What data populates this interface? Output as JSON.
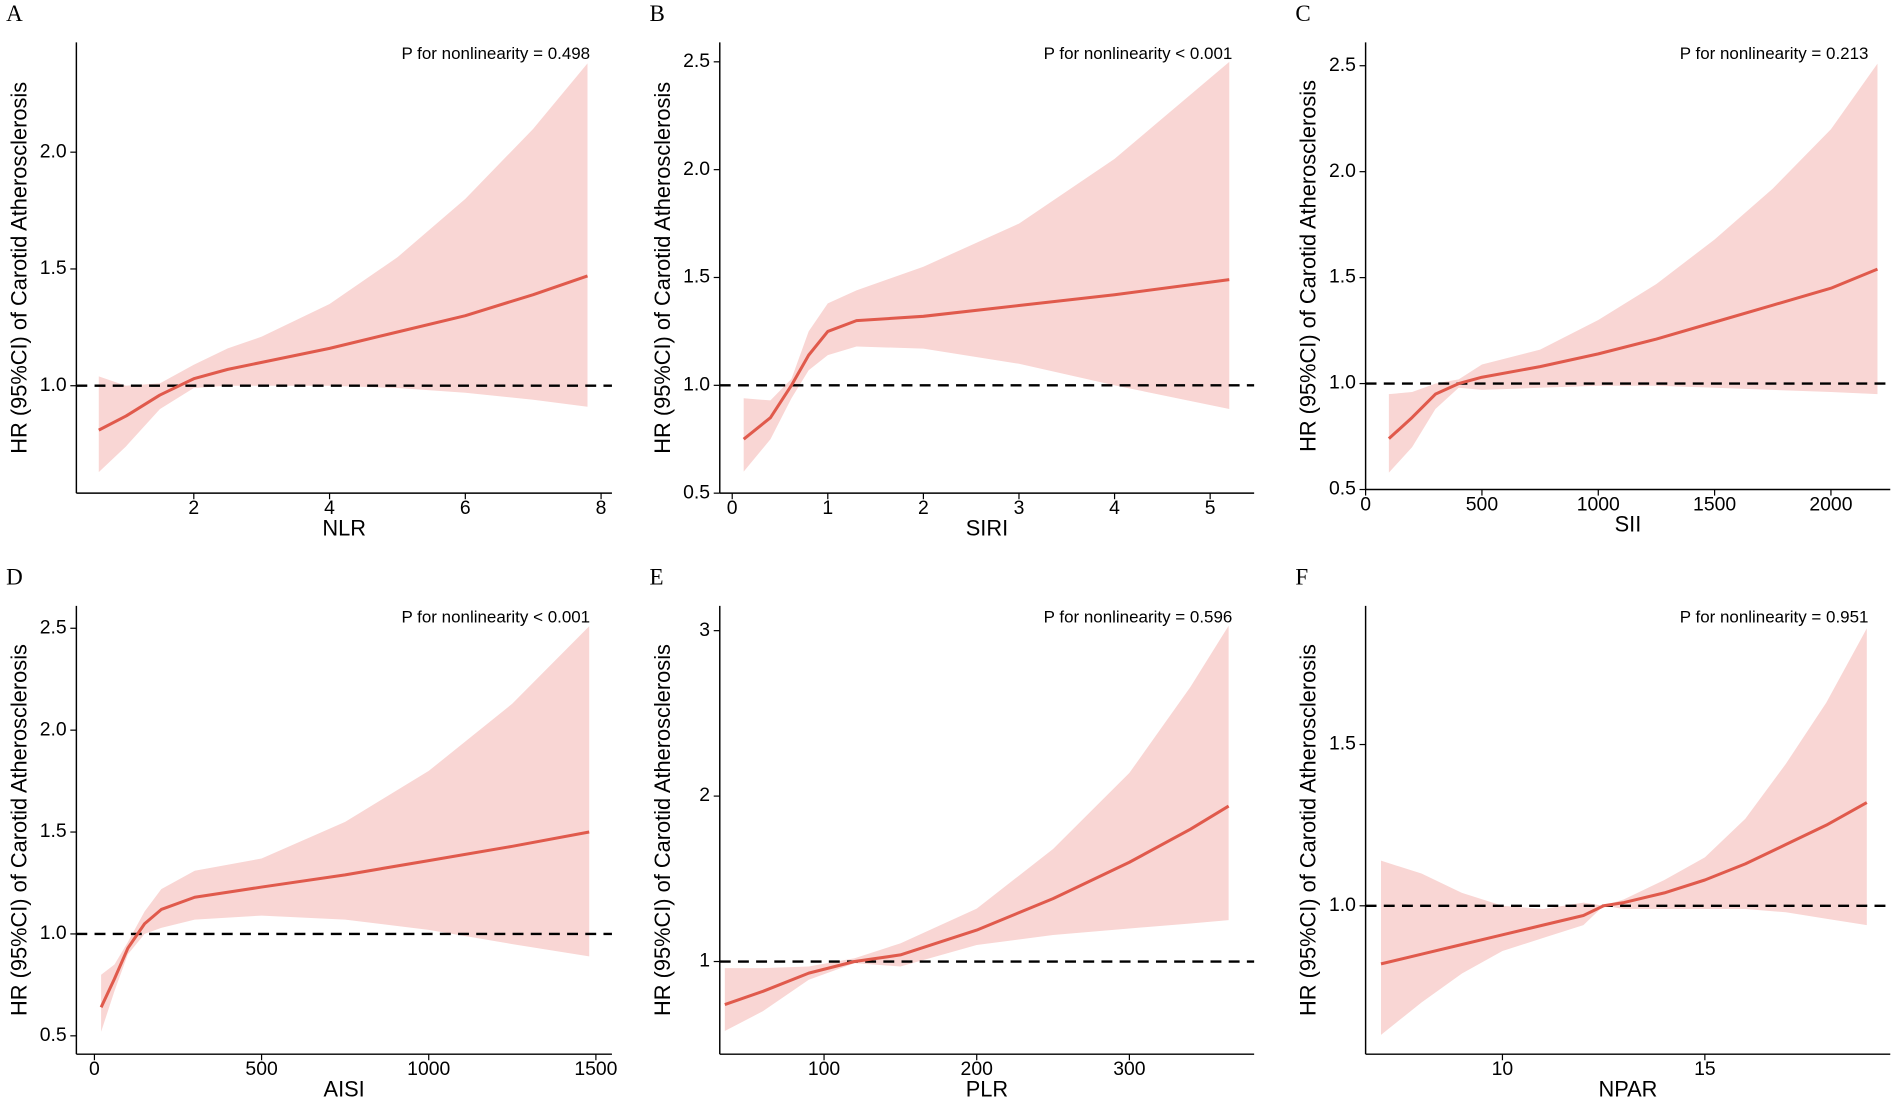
{
  "chart_data": [
    {
      "type": "line",
      "panel": "A",
      "annotation": "P for nonlinearity = 0.498",
      "xlabel": "NLR",
      "ylabel": "HR (95%CI) of Carotid Atherosclerosis",
      "color": "#e05a4c",
      "band_color": "#f9d6d4",
      "hline": 1,
      "xlim": [
        0.27,
        8.16
      ],
      "xticks": [
        2,
        4,
        6,
        8
      ],
      "ylim": [
        0.54,
        2.47
      ],
      "yticks": [
        {
          "value": 1,
          "label": "1.0"
        },
        {
          "value": 1.5,
          "label": "1.5"
        },
        {
          "value": 2,
          "label": "2.0"
        }
      ],
      "x": [
        0.6,
        1,
        1.5,
        2,
        2.5,
        3,
        4,
        5,
        6,
        7,
        7.8
      ],
      "values": [
        0.81,
        0.87,
        0.96,
        1.03,
        1.07,
        1.1,
        1.16,
        1.23,
        1.3,
        1.39,
        1.47
      ],
      "lower": [
        0.63,
        0.74,
        0.9,
        0.99,
        1.0,
        1.0,
        1.0,
        0.99,
        0.97,
        0.94,
        0.91
      ],
      "upper": [
        1.04,
        1.0,
        1.01,
        1.09,
        1.16,
        1.21,
        1.35,
        1.55,
        1.8,
        2.1,
        2.38
      ]
    },
    {
      "type": "line",
      "panel": "B",
      "annotation": "P for nonlinearity < 0.001",
      "xlabel": "SIRI",
      "ylabel": "HR (95%CI) of Carotid Atherosclerosis",
      "color": "#e05a4c",
      "band_color": "#f9d6d4",
      "hline": 1,
      "xlim": [
        -0.13,
        5.46
      ],
      "xticks": [
        0,
        1,
        2,
        3,
        4,
        5
      ],
      "ylim": [
        0.5,
        2.59
      ],
      "yticks": [
        0.5,
        {
          "value": 1,
          "label": "1.0"
        },
        1.5,
        {
          "value": 2,
          "label": "2.0"
        },
        2.5
      ],
      "x": [
        0.12,
        0.4,
        0.62,
        0.8,
        1.0,
        1.3,
        2,
        3,
        4,
        5.2
      ],
      "values": [
        0.75,
        0.85,
        1.0,
        1.14,
        1.25,
        1.3,
        1.32,
        1.37,
        1.42,
        1.49
      ],
      "lower": [
        0.6,
        0.75,
        0.94,
        1.07,
        1.14,
        1.18,
        1.17,
        1.1,
        1.0,
        0.89
      ],
      "upper": [
        0.94,
        0.93,
        1.03,
        1.25,
        1.38,
        1.44,
        1.55,
        1.75,
        2.05,
        2.5
      ]
    },
    {
      "type": "line",
      "panel": "C",
      "annotation": "P for nonlinearity = 0.213",
      "xlabel": "SII",
      "ylabel": "HR (95%CI) of Carotid Atherosclerosis",
      "color": "#e05a4c",
      "band_color": "#f9d6d4",
      "hline": 1,
      "xlim": [
        0,
        2255
      ],
      "xticks": [
        0,
        500,
        1000,
        1500,
        2000
      ],
      "ylim": [
        0.5,
        2.61
      ],
      "yticks": [
        0.5,
        {
          "value": 1,
          "label": "1.0"
        },
        1.5,
        {
          "value": 2,
          "label": "2.0"
        },
        2.5
      ],
      "x": [
        100,
        200,
        300,
        400,
        500,
        750,
        1000,
        1250,
        1500,
        1750,
        2000,
        2200
      ],
      "values": [
        0.74,
        0.84,
        0.95,
        1.0,
        1.03,
        1.08,
        1.14,
        1.21,
        1.29,
        1.37,
        1.45,
        1.54
      ],
      "lower": [
        0.58,
        0.7,
        0.88,
        0.98,
        0.97,
        0.98,
        0.99,
        0.99,
        0.98,
        0.97,
        0.96,
        0.95
      ],
      "upper": [
        0.95,
        0.96,
        1.0,
        1.02,
        1.09,
        1.16,
        1.3,
        1.47,
        1.68,
        1.92,
        2.2,
        2.51
      ]
    },
    {
      "type": "line",
      "panel": "D",
      "annotation": "P for nonlinearity < 0.001",
      "xlabel": "AISI",
      "ylabel": "HR (95%CI) of Carotid Atherosclerosis",
      "color": "#e05a4c",
      "band_color": "#f9d6d4",
      "hline": 1,
      "xlim": [
        -54,
        1548
      ],
      "xticks": [
        0,
        500,
        1000,
        1500
      ],
      "ylim": [
        0.41,
        2.61
      ],
      "yticks": [
        0.5,
        {
          "value": 1,
          "label": "1.0"
        },
        1.5,
        {
          "value": 2,
          "label": "2.0"
        },
        2.5
      ],
      "x": [
        20,
        60,
        100,
        150,
        200,
        300,
        500,
        750,
        1000,
        1250,
        1480
      ],
      "values": [
        0.64,
        0.78,
        0.93,
        1.05,
        1.12,
        1.18,
        1.23,
        1.29,
        1.36,
        1.43,
        1.5
      ],
      "lower": [
        0.52,
        0.72,
        0.9,
        1.0,
        1.03,
        1.07,
        1.09,
        1.07,
        1.02,
        0.95,
        0.89
      ],
      "upper": [
        0.8,
        0.85,
        0.96,
        1.11,
        1.22,
        1.31,
        1.37,
        1.55,
        1.8,
        2.13,
        2.51
      ]
    },
    {
      "type": "line",
      "panel": "E",
      "annotation": "P for nonlinearity = 0.596",
      "xlabel": "PLR",
      "ylabel": "HR (95%CI) of Carotid Atherosclerosis",
      "color": "#e05a4c",
      "band_color": "#f9d6d4",
      "hline": 1,
      "xlim": [
        31.7,
        381.7
      ],
      "xticks": [
        100,
        200,
        300
      ],
      "ylim": [
        0.44,
        3.15
      ],
      "yticks": [
        1,
        2,
        3
      ],
      "x": [
        35,
        60,
        90,
        120,
        150,
        200,
        250,
        300,
        340,
        365
      ],
      "values": [
        0.74,
        0.82,
        0.93,
        1.0,
        1.04,
        1.19,
        1.38,
        1.6,
        1.8,
        1.94
      ],
      "lower": [
        0.58,
        0.7,
        0.89,
        0.99,
        0.97,
        1.1,
        1.16,
        1.2,
        1.23,
        1.25
      ],
      "upper": [
        0.96,
        0.96,
        0.97,
        1.02,
        1.11,
        1.32,
        1.68,
        2.14,
        2.66,
        3.03
      ]
    },
    {
      "type": "line",
      "panel": "F",
      "annotation": "P for nonlinearity = 0.951",
      "xlabel": "NPAR",
      "ylabel": "HR (95%CI) of Carotid Atherosclerosis",
      "color": "#e05a4c",
      "band_color": "#f9d6d4",
      "hline": 1,
      "xlim": [
        6.62,
        19.58
      ],
      "xticks": [
        10,
        15
      ],
      "ylim": [
        0.54,
        1.93
      ],
      "yticks": [
        {
          "value": 1,
          "label": "1.0"
        },
        1.5
      ],
      "x": [
        7,
        8,
        9,
        10,
        11,
        12,
        12.5,
        13,
        14,
        15,
        16,
        17,
        18,
        19
      ],
      "values": [
        0.82,
        0.85,
        0.88,
        0.91,
        0.94,
        0.97,
        1.0,
        1.01,
        1.04,
        1.08,
        1.13,
        1.19,
        1.25,
        1.32
      ],
      "lower": [
        0.6,
        0.7,
        0.79,
        0.86,
        0.9,
        0.94,
        1.0,
        0.99,
        0.99,
        0.99,
        0.99,
        0.98,
        0.96,
        0.94
      ],
      "upper": [
        1.14,
        1.1,
        1.04,
        1.0,
        0.99,
        1.01,
        1.0,
        1.02,
        1.08,
        1.15,
        1.27,
        1.44,
        1.63,
        1.86
      ]
    }
  ]
}
